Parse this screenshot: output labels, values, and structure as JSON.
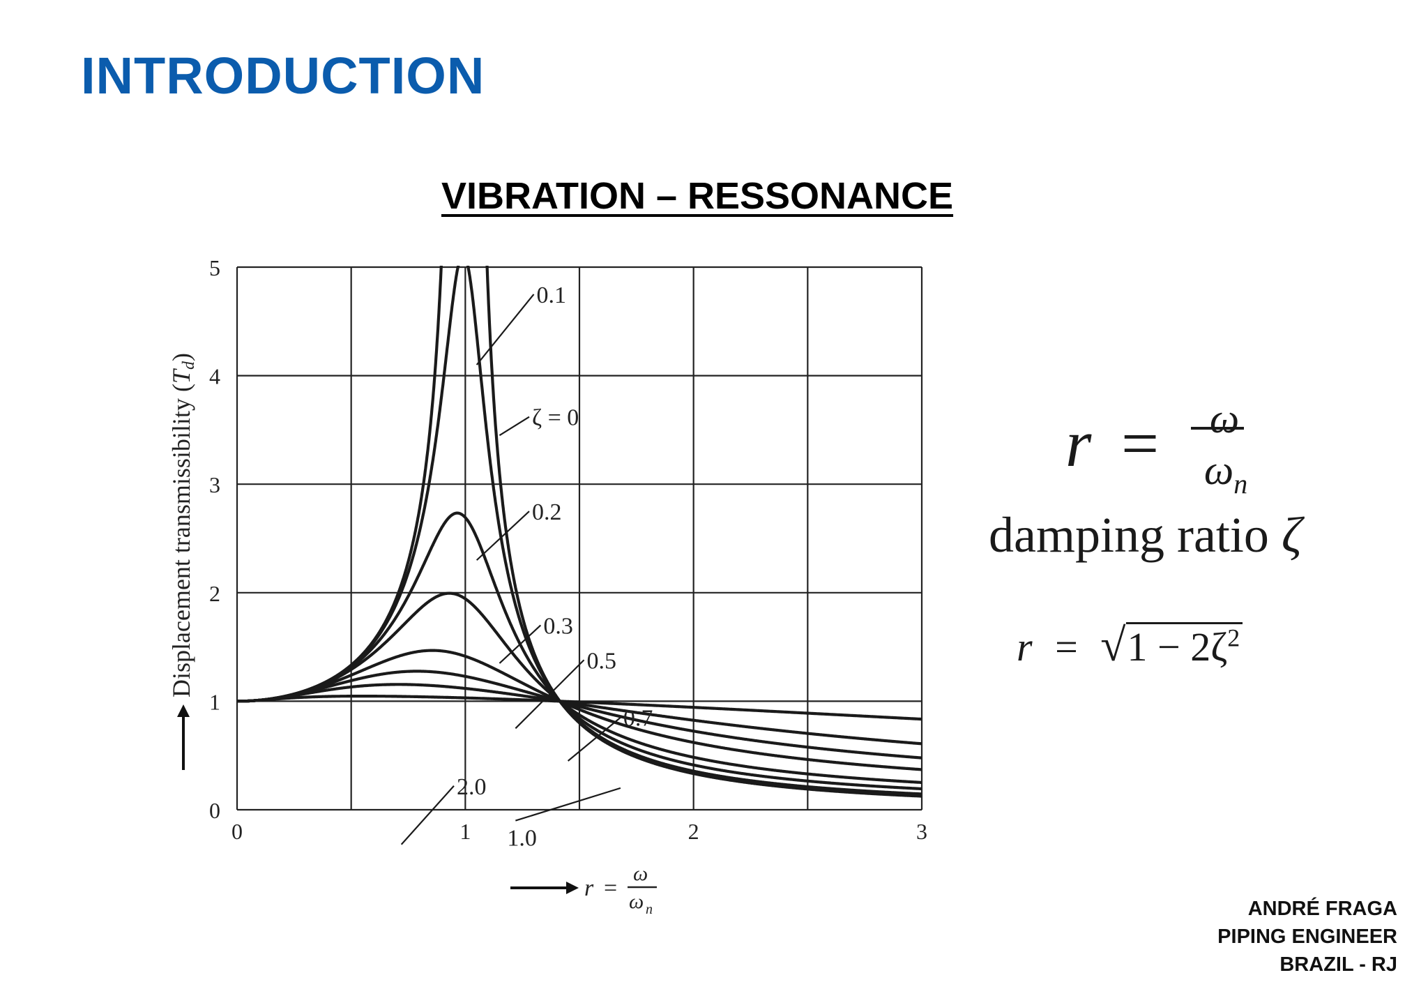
{
  "slide": {
    "heading": "INTRODUCTION",
    "heading_color": "#0b5cad"
  },
  "chart_data": {
    "type": "line",
    "title": "VIBRATION – RESSONANCE",
    "ylabel_text": "Displacement transmissibility (",
    "ylabel_symbol": "T",
    "ylabel_sub": "d",
    "ylabel_close": ")",
    "xlabel_r": "r",
    "xlabel_eq": "=",
    "xlabel_num": "ω",
    "xlabel_den": "ω",
    "xlabel_den_sub": "n",
    "xlim": [
      0,
      3
    ],
    "ylim": [
      0,
      5
    ],
    "grid": true,
    "x_ticks": [
      {
        "value": 0,
        "label": "0"
      },
      {
        "value": 1,
        "label": "1"
      },
      {
        "value": 2,
        "label": "2"
      },
      {
        "value": 3,
        "label": "3"
      }
    ],
    "y_ticks": [
      {
        "value": 0,
        "label": "0"
      },
      {
        "value": 1,
        "label": "1"
      },
      {
        "value": 2,
        "label": "2"
      },
      {
        "value": 3,
        "label": "3"
      },
      {
        "value": 4,
        "label": "4"
      },
      {
        "value": 5,
        "label": "5"
      }
    ],
    "x_grid": [
      0,
      0.5,
      1,
      1.5,
      2,
      2.5,
      3
    ],
    "y_grid": [
      0,
      1,
      2,
      3,
      4,
      5
    ],
    "series": [
      {
        "zeta": 0,
        "name": "ζ = 0"
      },
      {
        "zeta": 0.1,
        "name": "0.1"
      },
      {
        "zeta": 0.2,
        "name": "0.2"
      },
      {
        "zeta": 0.3,
        "name": "0.3"
      },
      {
        "zeta": 0.5,
        "name": "0.5"
      },
      {
        "zeta": 0.7,
        "name": "0.7"
      },
      {
        "zeta": 1.0,
        "name": "1.0"
      },
      {
        "zeta": 2.0,
        "name": "2.0"
      }
    ],
    "annotations": [
      {
        "zeta": 0.1,
        "label": "0.1",
        "x": 1.05,
        "y": 4.1,
        "lx": 1.3,
        "ly": 4.75
      },
      {
        "zeta": 0,
        "label": "ζ = 0",
        "x": 1.15,
        "y": 3.45,
        "lx": 1.28,
        "ly": 3.62
      },
      {
        "zeta": 0.2,
        "label": "0.2",
        "x": 1.05,
        "y": 2.3,
        "lx": 1.28,
        "ly": 2.75
      },
      {
        "zeta": 0.3,
        "label": "0.3",
        "x": 1.15,
        "y": 1.35,
        "lx": 1.33,
        "ly": 1.7
      },
      {
        "zeta": 0.5,
        "label": "0.5",
        "x": 1.22,
        "y": 0.75,
        "lx": 1.52,
        "ly": 1.38
      },
      {
        "zeta": 0.7,
        "label": "0.7",
        "x": 1.45,
        "y": 0.45,
        "lx": 1.68,
        "ly": 0.85
      },
      {
        "zeta": 1.0,
        "label": "1.0",
        "x": 1.68,
        "y": 0.2,
        "lx": 1.22,
        "ly": -0.1
      },
      {
        "zeta": 2.0,
        "label": "2.0",
        "x": 0.72,
        "y": -0.32,
        "lx": 0.95,
        "ly": 0.22
      }
    ]
  },
  "formulas": {
    "r_def": {
      "lhs": "r",
      "eq": "=",
      "num": "ω",
      "den": "ω",
      "den_sub": "n"
    },
    "damping_text": "damping ratio ",
    "damping_symbol": "ζ",
    "resonance": {
      "lhs": "r",
      "eq": "=",
      "radicand": "1 − 2ζ",
      "exponent": "2"
    }
  },
  "author": {
    "name": "ANDRÉ FRAGA",
    "role": "PIPING ENGINEER",
    "location": "BRAZIL - RJ"
  }
}
